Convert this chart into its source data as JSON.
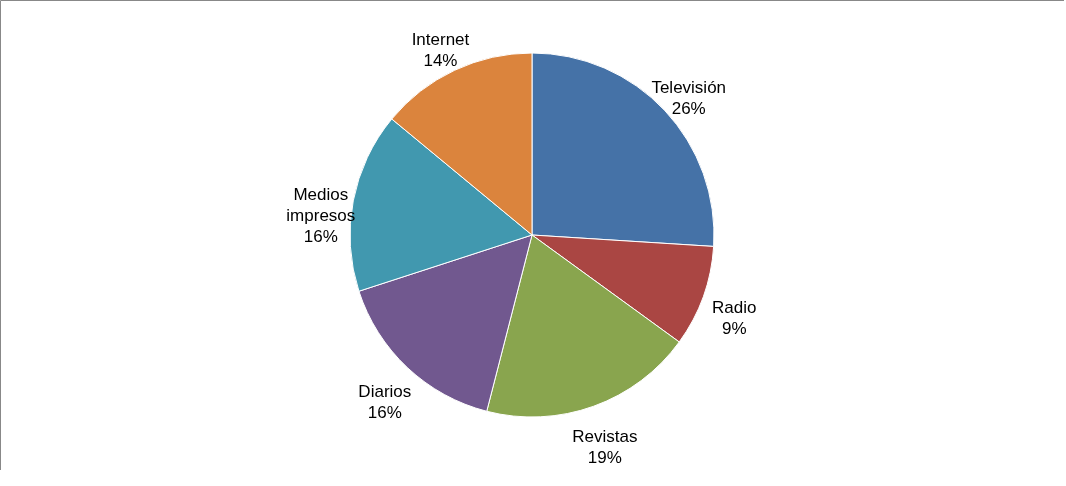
{
  "chart_data": {
    "type": "pie",
    "categories": [
      "Televisión",
      "Radio",
      "Revistas",
      "Diarios",
      "Medios impresos",
      "Internet"
    ],
    "values": [
      26,
      9,
      19,
      16,
      16,
      14
    ],
    "value_labels": [
      "26%",
      "9%",
      "19%",
      "16%",
      "16%",
      "14%"
    ],
    "colors": [
      "#4572a7",
      "#aa4643",
      "#89a54e",
      "#71588f",
      "#4198af",
      "#db843d"
    ]
  }
}
